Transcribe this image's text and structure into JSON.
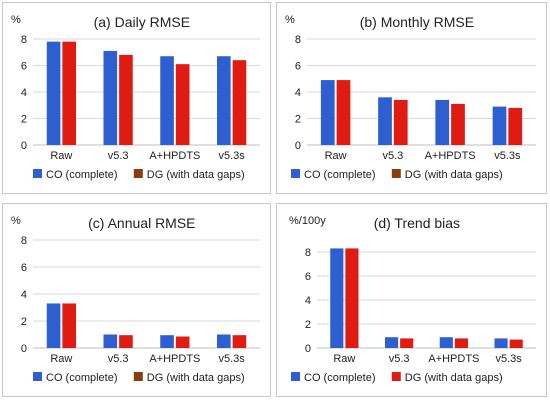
{
  "colors": {
    "co": "#2e5fd0",
    "dg": "#e01b12",
    "dg_legend": "#8a3d10",
    "grid": "#d9d9d9",
    "axis": "#bfbfbf",
    "text": "#222222"
  },
  "legend": {
    "co": "CO (complete)",
    "dg": "DG (with data gaps)"
  },
  "chart_data": [
    {
      "type": "bar",
      "title": "(a) Daily RMSE",
      "unit_label": "%",
      "categories": [
        "Raw",
        "v5.3",
        "A+HPDTS",
        "v5.3s"
      ],
      "ylim": [
        0,
        8
      ],
      "yticks": [
        "0",
        "2",
        "4",
        "6",
        "8"
      ],
      "grid": true,
      "series": [
        {
          "name": "CO (complete)",
          "values": [
            7.8,
            7.1,
            6.7,
            6.7
          ]
        },
        {
          "name": "DG (with data gaps)",
          "values": [
            7.8,
            6.8,
            6.1,
            6.4
          ]
        }
      ]
    },
    {
      "type": "bar",
      "title": "(b) Monthly RMSE",
      "unit_label": "%",
      "categories": [
        "Raw",
        "v5.3",
        "A+HPDTS",
        "v5.3s"
      ],
      "ylim": [
        0,
        8
      ],
      "yticks": [
        "0",
        "2",
        "4",
        "6",
        "8"
      ],
      "grid": true,
      "series": [
        {
          "name": "CO (complete)",
          "values": [
            4.9,
            3.6,
            3.4,
            2.9
          ]
        },
        {
          "name": "DG (with data gaps)",
          "values": [
            4.9,
            3.4,
            3.1,
            2.8
          ]
        }
      ]
    },
    {
      "type": "bar",
      "title": "(c) Annual RMSE",
      "unit_label": "%",
      "categories": [
        "Raw",
        "v5.3",
        "A+HPDTS",
        "v5.3s"
      ],
      "ylim": [
        0,
        8
      ],
      "yticks": [
        "0",
        "2",
        "4",
        "6",
        "8"
      ],
      "grid": true,
      "series": [
        {
          "name": "CO (complete)",
          "values": [
            3.3,
            1.0,
            0.95,
            1.0
          ]
        },
        {
          "name": "DG (with data gaps)",
          "values": [
            3.3,
            0.95,
            0.85,
            0.95
          ]
        }
      ]
    },
    {
      "type": "bar",
      "title": "(d) Trend bias",
      "unit_label": "%/100y",
      "categories": [
        "Raw",
        "v5.3",
        "A+HPDTS",
        "v5.3s"
      ],
      "ylim": [
        0,
        9
      ],
      "yticks": [
        "0",
        "2",
        "4",
        "6",
        "8"
      ],
      "grid": true,
      "series": [
        {
          "name": "CO (complete)",
          "values": [
            8.3,
            0.9,
            0.9,
            0.8
          ]
        },
        {
          "name": "DG (with data gaps)",
          "values": [
            8.3,
            0.8,
            0.8,
            0.7
          ]
        }
      ]
    }
  ]
}
